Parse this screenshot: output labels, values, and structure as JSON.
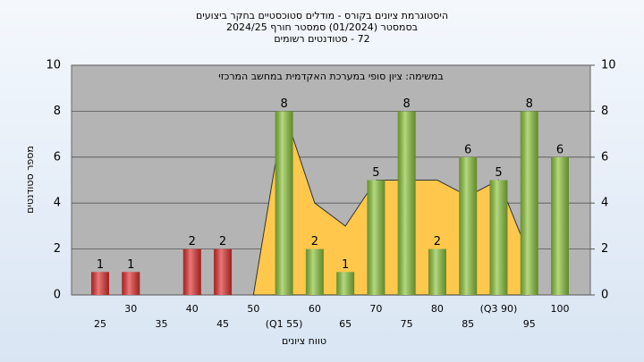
{
  "chart_data": {
    "type": "bar",
    "title": [
      "היסטוגרמת ציונים בקורס - מודלים סטוכסטיים בחקר ביצועים",
      "בסמסטר (01/2024) סמסטר חורף 2024/25",
      "72 - סטודנטים רשומים"
    ],
    "subtitle": "במשימה: ציון סופי במערכת האקדמית במחשב המרכזי",
    "x_label": "טווח ציונים",
    "y_label": "מספר סטודנטים",
    "categories": [
      "25",
      "30",
      "35",
      "40",
      "45",
      "50",
      "(Q1 55)",
      "60",
      "65",
      "70",
      "75",
      "80",
      "85",
      "(Q3 90)",
      "95",
      "100"
    ],
    "series": [
      {
        "values": [
          1,
          1,
          0,
          2,
          2,
          0,
          8,
          2,
          1,
          5,
          8,
          2,
          6,
          5,
          8,
          6
        ],
        "colors": [
          "#e03030",
          "#e03030",
          "#e03030",
          "#e03030",
          "#e03030",
          "#e03030",
          "#8cc43c",
          "#8cc43c",
          "#8cc43c",
          "#8cc43c",
          "#8cc43c",
          "#8cc43c",
          "#8cc43c",
          "#8cc43c",
          "#8cc43c",
          "#8cc43c"
        ]
      },
      {
        "type": "area",
        "color": "#ffc84c",
        "values": [
          null,
          null,
          null,
          null,
          null,
          0,
          8,
          4,
          3,
          5,
          5,
          5,
          4.3,
          5,
          1.7,
          null
        ]
      }
    ],
    "ylim": [
      0,
      10
    ],
    "yticks": [
      0,
      2,
      4,
      6,
      8,
      10
    ],
    "y2lim": [
      0,
      10
    ],
    "y2ticks": [
      0,
      2,
      4,
      6,
      8,
      10
    ],
    "grid": true
  }
}
